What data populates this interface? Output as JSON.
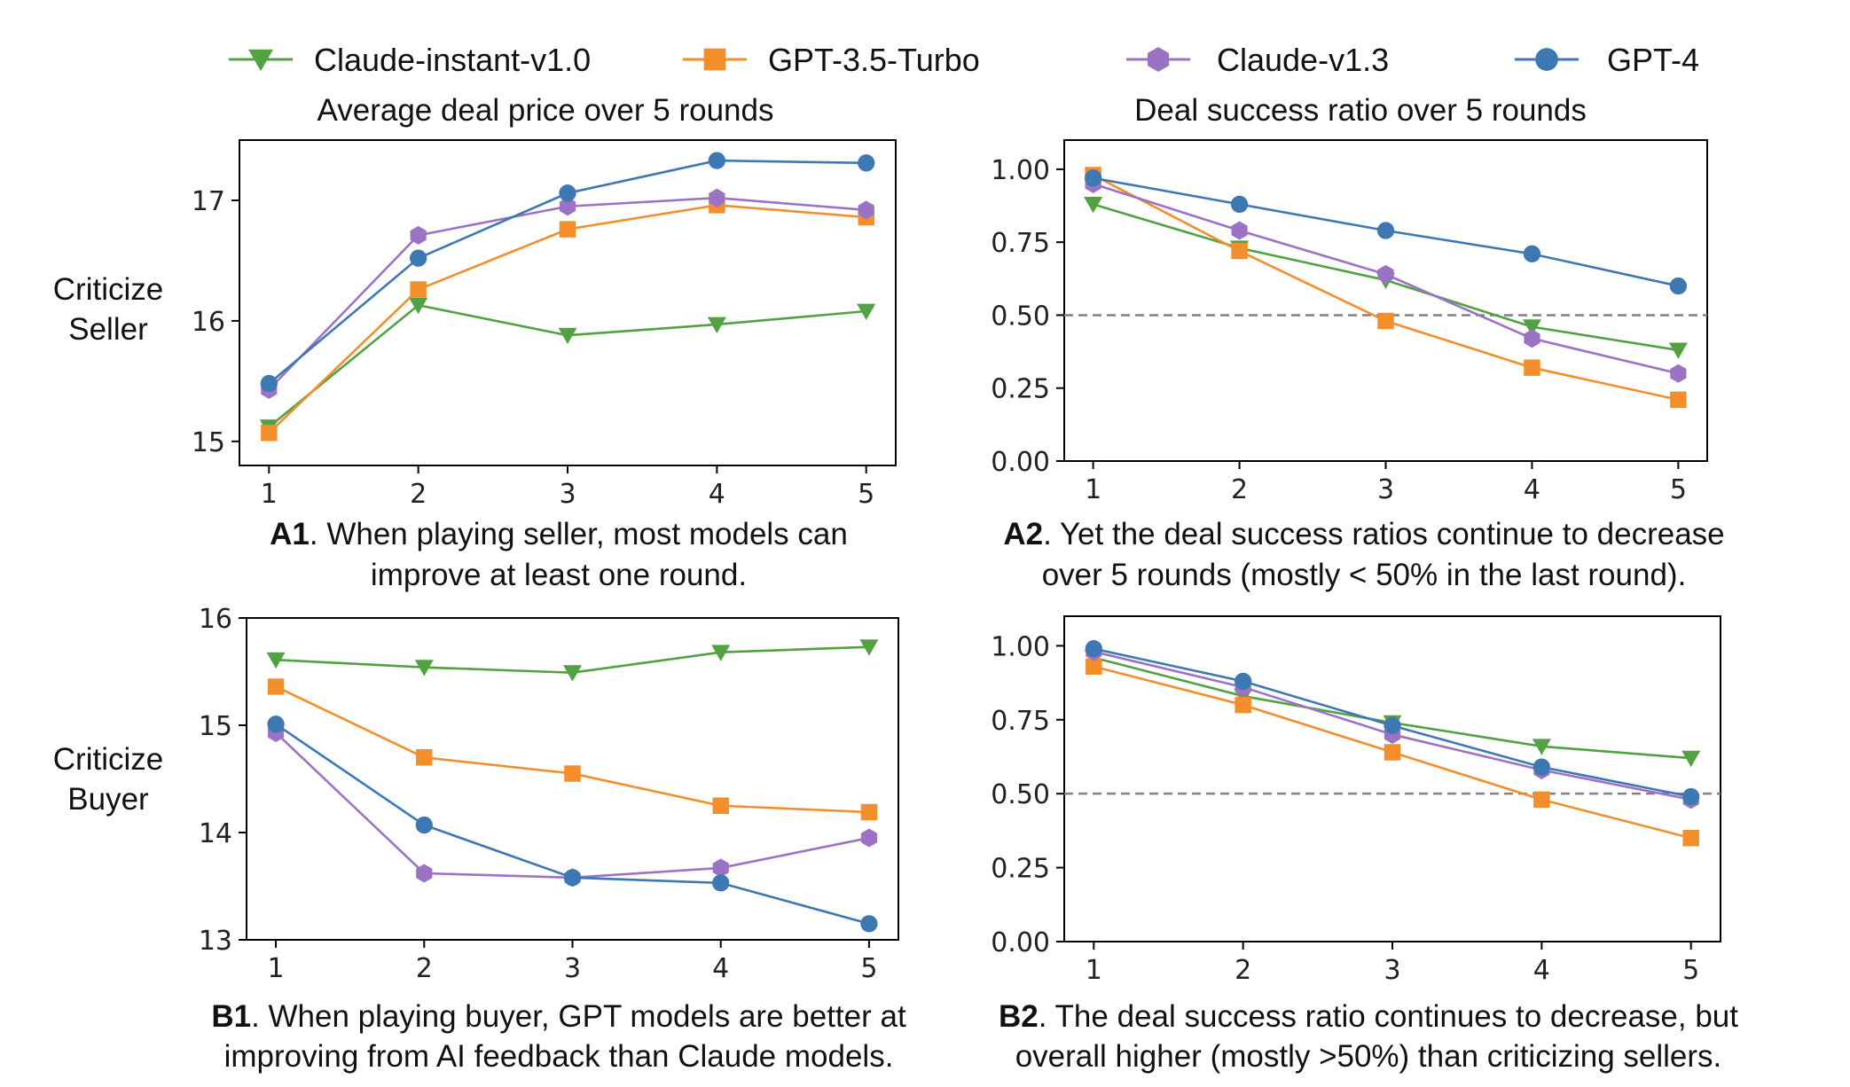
{
  "legend": [
    {
      "name": "Claude-instant-v1.0",
      "color": "#52a143",
      "marker": "triangle-down"
    },
    {
      "name": "GPT-3.5-Turbo",
      "color": "#f28e2b",
      "marker": "square"
    },
    {
      "name": "Claude-v1.3",
      "color": "#9b72c4",
      "marker": "hexagon"
    },
    {
      "name": "GPT-4",
      "color": "#3e78b3",
      "marker": "circle"
    }
  ],
  "titles": {
    "left": "Average deal price over 5 rounds",
    "right": "Deal success ratio over 5 rounds"
  },
  "row_labels": {
    "seller": [
      "Criticize",
      "Seller"
    ],
    "buyer": [
      "Criticize",
      "Buyer"
    ]
  },
  "captions": {
    "A1": {
      "bold": "A1",
      "line1": ". When playing seller, most models can",
      "line2": "improve at least one round."
    },
    "A2": {
      "bold": "A2",
      "line1": ". Yet the deal success ratios continue to decrease",
      "line2": "over 5 rounds (mostly < 50% in the last round)."
    },
    "B1": {
      "bold": "B1",
      "line1": ". When playing buyer, GPT models are better at",
      "line2": "improving from AI feedback than Claude models."
    },
    "B2": {
      "bold": "B2",
      "line1": ". The deal success ratio continues to decrease, but",
      "line2": "overall higher (mostly >50%) than criticizing sellers."
    }
  },
  "chart_data": [
    {
      "id": "A1",
      "type": "line",
      "x": [
        1,
        2,
        3,
        4,
        5
      ],
      "xticks": [
        "1",
        "2",
        "3",
        "4",
        "5"
      ],
      "ylim": [
        14.8,
        17.5
      ],
      "yticks": [
        15,
        16,
        17
      ],
      "ytick_labels": [
        "15",
        "16",
        "17"
      ],
      "grid": false,
      "series": [
        {
          "name": "Claude-instant-v1.0",
          "values": [
            15.12,
            16.13,
            15.88,
            15.97,
            16.08
          ]
        },
        {
          "name": "GPT-3.5-Turbo",
          "values": [
            15.07,
            16.26,
            16.76,
            16.96,
            16.86
          ]
        },
        {
          "name": "Claude-v1.3",
          "values": [
            15.43,
            16.71,
            16.95,
            17.02,
            16.92
          ]
        },
        {
          "name": "GPT-4",
          "values": [
            15.48,
            16.52,
            17.06,
            17.33,
            17.31
          ]
        }
      ]
    },
    {
      "id": "A2",
      "type": "line",
      "x": [
        1,
        2,
        3,
        4,
        5
      ],
      "xticks": [
        "1",
        "2",
        "3",
        "4",
        "5"
      ],
      "ylim": [
        0.0,
        1.1
      ],
      "yticks": [
        0.0,
        0.25,
        0.5,
        0.75,
        1.0
      ],
      "ytick_labels": [
        "0.00",
        "0.25",
        "0.50",
        "0.75",
        "1.00"
      ],
      "hline": 0.5,
      "grid": false,
      "series": [
        {
          "name": "Claude-instant-v1.0",
          "values": [
            0.88,
            0.73,
            0.62,
            0.46,
            0.38
          ]
        },
        {
          "name": "GPT-3.5-Turbo",
          "values": [
            0.98,
            0.72,
            0.48,
            0.32,
            0.21
          ]
        },
        {
          "name": "Claude-v1.3",
          "values": [
            0.95,
            0.79,
            0.64,
            0.42,
            0.3
          ]
        },
        {
          "name": "GPT-4",
          "values": [
            0.97,
            0.88,
            0.79,
            0.71,
            0.6
          ]
        }
      ]
    },
    {
      "id": "B1",
      "type": "line",
      "x": [
        1,
        2,
        3,
        4,
        5
      ],
      "xticks": [
        "1",
        "2",
        "3",
        "4",
        "5"
      ],
      "ylim": [
        13.0,
        16.0
      ],
      "yticks": [
        13,
        14,
        15,
        16
      ],
      "ytick_labels": [
        "13",
        "14",
        "15",
        "16"
      ],
      "grid": false,
      "series": [
        {
          "name": "Claude-instant-v1.0",
          "values": [
            15.61,
            15.54,
            15.49,
            15.68,
            15.73
          ]
        },
        {
          "name": "GPT-3.5-Turbo",
          "values": [
            15.36,
            14.7,
            14.55,
            14.25,
            14.19
          ]
        },
        {
          "name": "Claude-v1.3",
          "values": [
            14.93,
            13.62,
            13.58,
            13.67,
            13.95
          ]
        },
        {
          "name": "GPT-4",
          "values": [
            15.01,
            14.07,
            13.58,
            13.53,
            13.15
          ]
        }
      ]
    },
    {
      "id": "B2",
      "type": "line",
      "x": [
        1,
        2,
        3,
        4,
        5
      ],
      "xticks": [
        "1",
        "2",
        "3",
        "4",
        "5"
      ],
      "ylim": [
        0.0,
        1.1
      ],
      "yticks": [
        0.0,
        0.25,
        0.5,
        0.75,
        1.0
      ],
      "ytick_labels": [
        "0.00",
        "0.25",
        "0.50",
        "0.75",
        "1.00"
      ],
      "hline": 0.5,
      "grid": false,
      "series": [
        {
          "name": "Claude-instant-v1.0",
          "values": [
            0.96,
            0.83,
            0.74,
            0.66,
            0.62
          ]
        },
        {
          "name": "GPT-3.5-Turbo",
          "values": [
            0.93,
            0.8,
            0.64,
            0.48,
            0.35
          ]
        },
        {
          "name": "Claude-v1.3",
          "values": [
            0.98,
            0.86,
            0.7,
            0.58,
            0.48
          ]
        },
        {
          "name": "GPT-4",
          "values": [
            0.99,
            0.88,
            0.73,
            0.59,
            0.49
          ]
        }
      ]
    }
  ]
}
